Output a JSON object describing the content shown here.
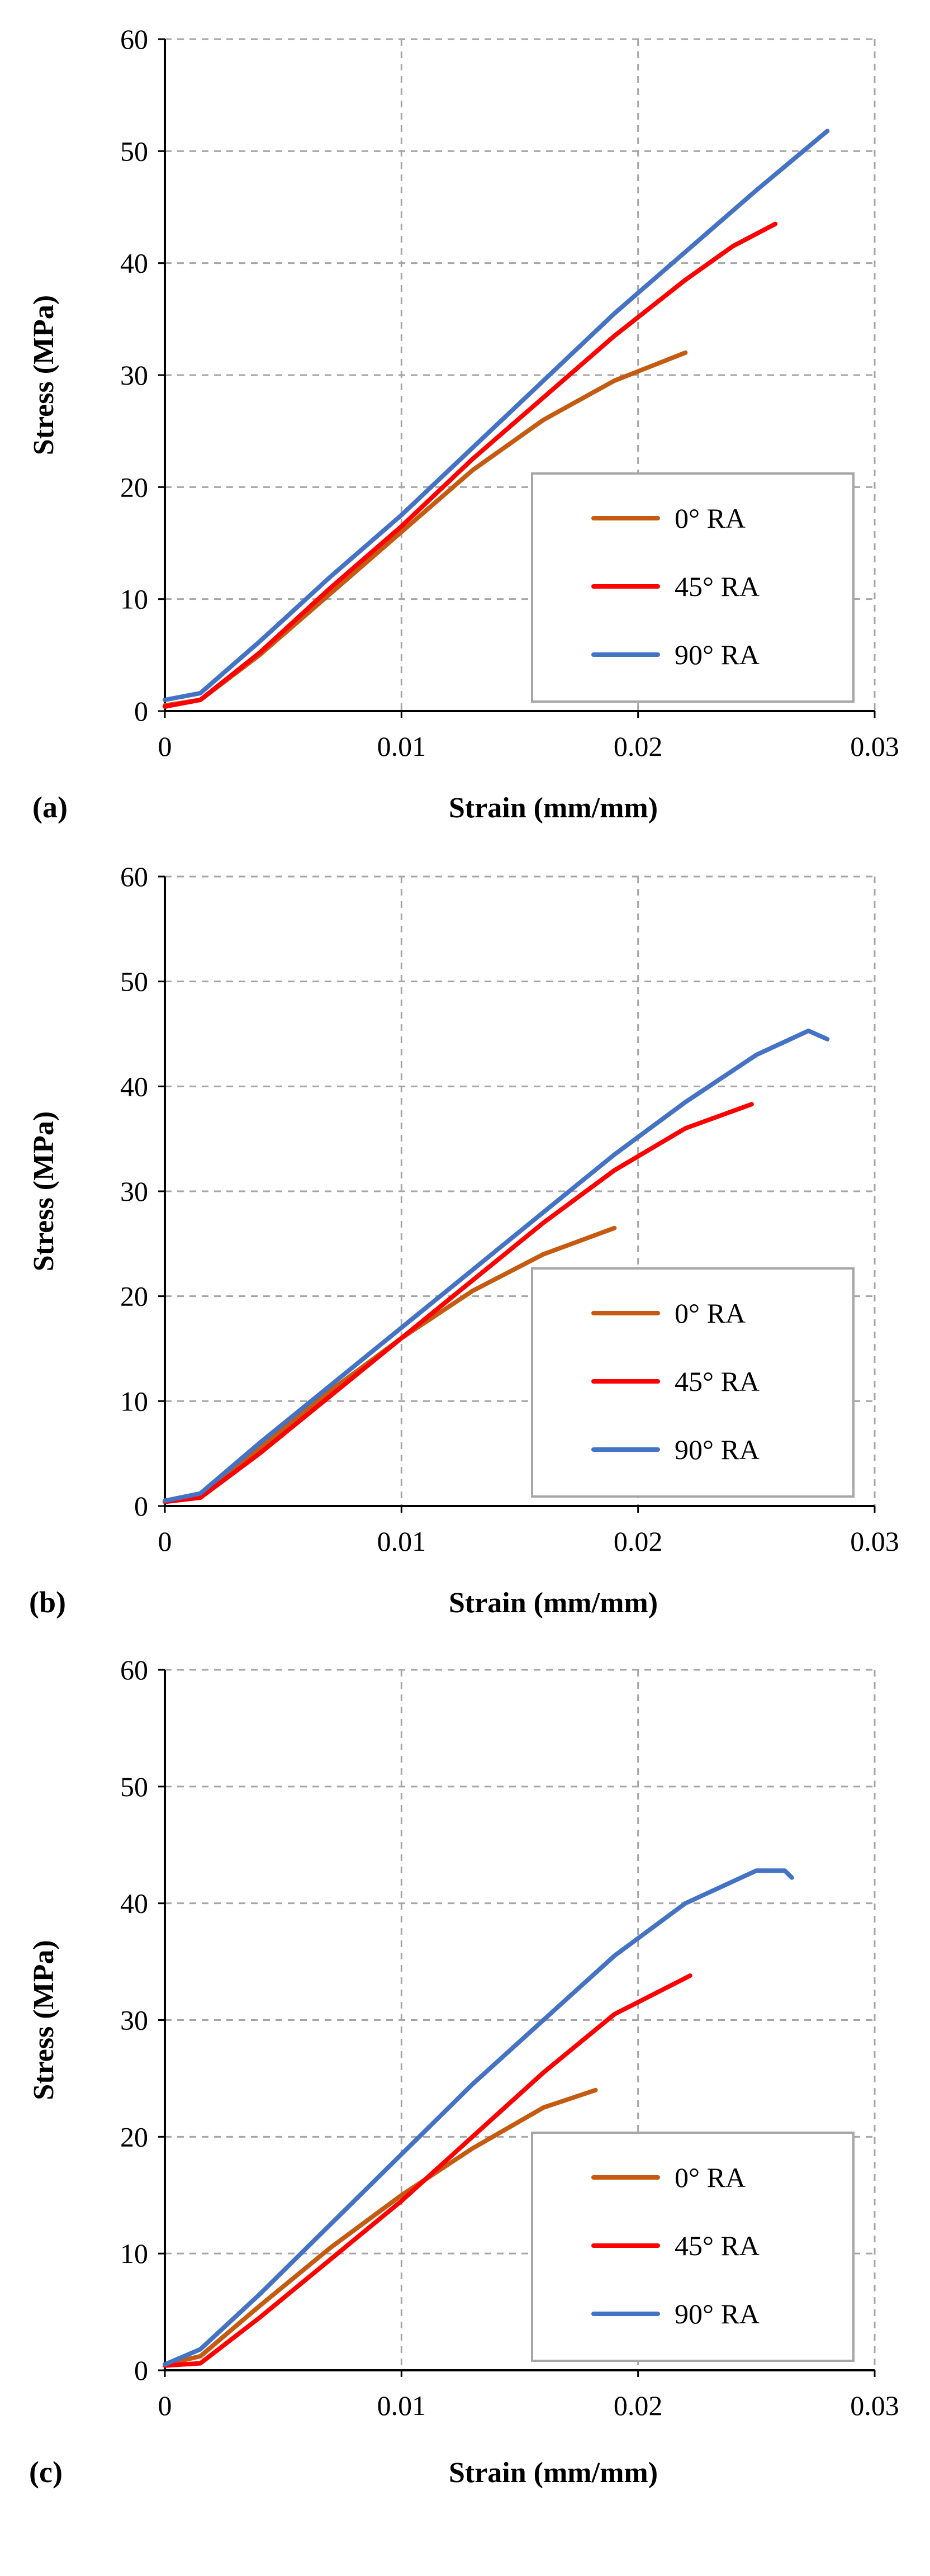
{
  "chart_data": [
    {
      "type": "line",
      "panel_label": "(a)",
      "title": "",
      "xlabel": "Strain (mm/mm)",
      "ylabel": "Stress (MPa)",
      "xlim": [
        0,
        0.03
      ],
      "ylim": [
        0,
        60
      ],
      "xticks": [
        0,
        0.01,
        0.02,
        0.03
      ],
      "xtick_labels": [
        "0",
        "0.01",
        "0.02",
        "0.03"
      ],
      "yticks": [
        0,
        10,
        20,
        30,
        40,
        50,
        60
      ],
      "ytick_labels": [
        "0",
        "10",
        "20",
        "30",
        "40",
        "50",
        "60"
      ],
      "grid": true,
      "legend_position": "bottom-right",
      "series": [
        {
          "name": "0° RA",
          "color": "#c55a11",
          "x": [
            0,
            0.0015,
            0.004,
            0.007,
            0.01,
            0.013,
            0.016,
            0.019,
            0.022
          ],
          "y": [
            0.5,
            1.0,
            5.0,
            10.5,
            16.0,
            21.5,
            26.0,
            29.5,
            32.0
          ]
        },
        {
          "name": "45° RA",
          "color": "#ff0000",
          "x": [
            0,
            0.0015,
            0.004,
            0.007,
            0.01,
            0.013,
            0.016,
            0.019,
            0.022,
            0.024,
            0.0258
          ],
          "y": [
            0.4,
            1.0,
            5.2,
            11.0,
            16.5,
            22.5,
            28.0,
            33.5,
            38.5,
            41.5,
            43.5
          ]
        },
        {
          "name": "90° RA",
          "color": "#4472c4",
          "x": [
            0,
            0.0015,
            0.004,
            0.007,
            0.01,
            0.013,
            0.016,
            0.019,
            0.022,
            0.025,
            0.028
          ],
          "y": [
            1.0,
            1.6,
            6.2,
            12.0,
            17.5,
            23.5,
            29.5,
            35.5,
            41.0,
            46.5,
            51.8
          ]
        }
      ]
    },
    {
      "type": "line",
      "panel_label": "(b)",
      "title": "",
      "xlabel": "Strain (mm/mm)",
      "ylabel": "Stress (MPa)",
      "xlim": [
        0,
        0.03
      ],
      "ylim": [
        0,
        60
      ],
      "xticks": [
        0,
        0.01,
        0.02,
        0.03
      ],
      "xtick_labels": [
        "0",
        "0.01",
        "0.02",
        "0.03"
      ],
      "yticks": [
        0,
        10,
        20,
        30,
        40,
        50,
        60
      ],
      "ytick_labels": [
        "0",
        "10",
        "20",
        "30",
        "40",
        "50",
        "60"
      ],
      "grid": true,
      "legend_position": "bottom-right",
      "series": [
        {
          "name": "0° RA",
          "color": "#c55a11",
          "x": [
            0,
            0.0015,
            0.004,
            0.007,
            0.01,
            0.013,
            0.016,
            0.019
          ],
          "y": [
            0.5,
            1.0,
            5.5,
            11.0,
            16.0,
            20.5,
            24.0,
            26.5
          ]
        },
        {
          "name": "45° RA",
          "color": "#ff0000",
          "x": [
            0,
            0.0015,
            0.004,
            0.007,
            0.01,
            0.013,
            0.016,
            0.019,
            0.022,
            0.0248
          ],
          "y": [
            0.4,
            0.8,
            5.0,
            10.5,
            16.0,
            21.5,
            27.0,
            32.0,
            36.0,
            38.3
          ]
        },
        {
          "name": "90° RA",
          "color": "#4472c4",
          "x": [
            0,
            0.0015,
            0.004,
            0.007,
            0.01,
            0.013,
            0.016,
            0.019,
            0.022,
            0.025,
            0.0272,
            0.028
          ],
          "y": [
            0.5,
            1.2,
            6.0,
            11.5,
            17.0,
            22.5,
            28.0,
            33.5,
            38.5,
            43.0,
            45.3,
            44.5
          ]
        }
      ]
    },
    {
      "type": "line",
      "panel_label": "(c)",
      "title": "",
      "xlabel": "Strain (mm/mm)",
      "ylabel": "Stress (MPa)",
      "xlim": [
        0,
        0.03
      ],
      "ylim": [
        0,
        60
      ],
      "xticks": [
        0,
        0.01,
        0.02,
        0.03
      ],
      "xtick_labels": [
        "0",
        "0.01",
        "0.02",
        "0.03"
      ],
      "yticks": [
        0,
        10,
        20,
        30,
        40,
        50,
        60
      ],
      "ytick_labels": [
        "0",
        "10",
        "20",
        "30",
        "40",
        "50",
        "60"
      ],
      "grid": true,
      "legend_position": "bottom-right",
      "series": [
        {
          "name": "0° RA",
          "color": "#c55a11",
          "x": [
            0,
            0.0015,
            0.004,
            0.007,
            0.01,
            0.013,
            0.016,
            0.0182
          ],
          "y": [
            0.5,
            1.2,
            5.5,
            10.5,
            15.0,
            19.0,
            22.5,
            24.0
          ]
        },
        {
          "name": "45° RA",
          "color": "#ff0000",
          "x": [
            0,
            0.0015,
            0.004,
            0.007,
            0.01,
            0.013,
            0.016,
            0.019,
            0.0222
          ],
          "y": [
            0.4,
            0.6,
            4.5,
            9.5,
            14.5,
            20.0,
            25.5,
            30.5,
            33.8
          ]
        },
        {
          "name": "90° RA",
          "color": "#4472c4",
          "x": [
            0,
            0.0015,
            0.004,
            0.007,
            0.01,
            0.013,
            0.016,
            0.019,
            0.022,
            0.025,
            0.0262,
            0.0265
          ],
          "y": [
            0.5,
            1.8,
            6.5,
            12.5,
            18.5,
            24.5,
            30.0,
            35.5,
            40.0,
            42.8,
            42.8,
            42.2
          ]
        }
      ]
    }
  ]
}
